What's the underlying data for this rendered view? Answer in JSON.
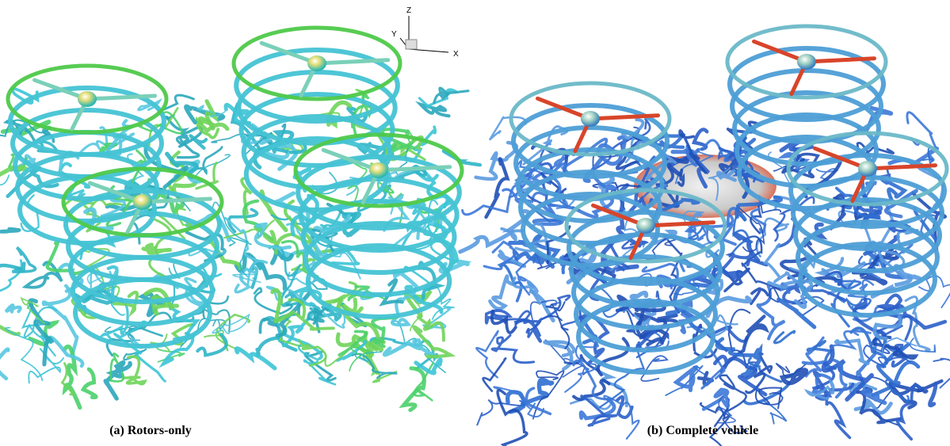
{
  "figures": [
    {
      "caption": "(a) Rotors-only"
    },
    {
      "caption": "(b) Complete vehicle"
    }
  ],
  "axes_triad": {
    "z": "Z",
    "y": "Y",
    "x": "X"
  }
}
